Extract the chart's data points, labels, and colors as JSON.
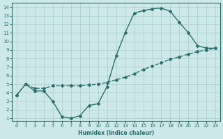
{
  "xlabel": "Humidex (Indice chaleur)",
  "x_labels": [
    "0",
    "1",
    "3",
    "4",
    "5",
    "6",
    "7",
    "8",
    "9",
    "10",
    "11",
    "12",
    "13",
    "14",
    "15",
    "16",
    "17",
    "18",
    "19",
    "20",
    "21",
    "22",
    "23"
  ],
  "y_main": [
    3.7,
    5.0,
    4.2,
    4.2,
    3.0,
    1.2,
    1.0,
    1.3,
    2.5,
    2.7,
    4.7,
    8.3,
    11.0,
    13.3,
    13.6,
    13.8,
    13.9,
    13.5,
    12.2,
    11.0,
    9.5,
    9.2,
    9.2
  ],
  "y_min": [
    3.7,
    5.0,
    4.5,
    4.5,
    4.8,
    4.8,
    4.8,
    4.8,
    4.9,
    5.0,
    5.2,
    5.5,
    5.8,
    6.2,
    6.7,
    7.1,
    7.5,
    7.9,
    8.2,
    8.5,
    8.8,
    9.0,
    9.2
  ],
  "line_color": "#2d6e6e",
  "bg_color": "#cce8e8",
  "grid_color": "#aacccc",
  "ylim": [
    0.7,
    14.5
  ],
  "yticks": [
    1,
    2,
    3,
    4,
    5,
    6,
    7,
    8,
    9,
    10,
    11,
    12,
    13,
    14
  ],
  "marker": "D",
  "marker_size": 2.0,
  "line_width": 1.0
}
